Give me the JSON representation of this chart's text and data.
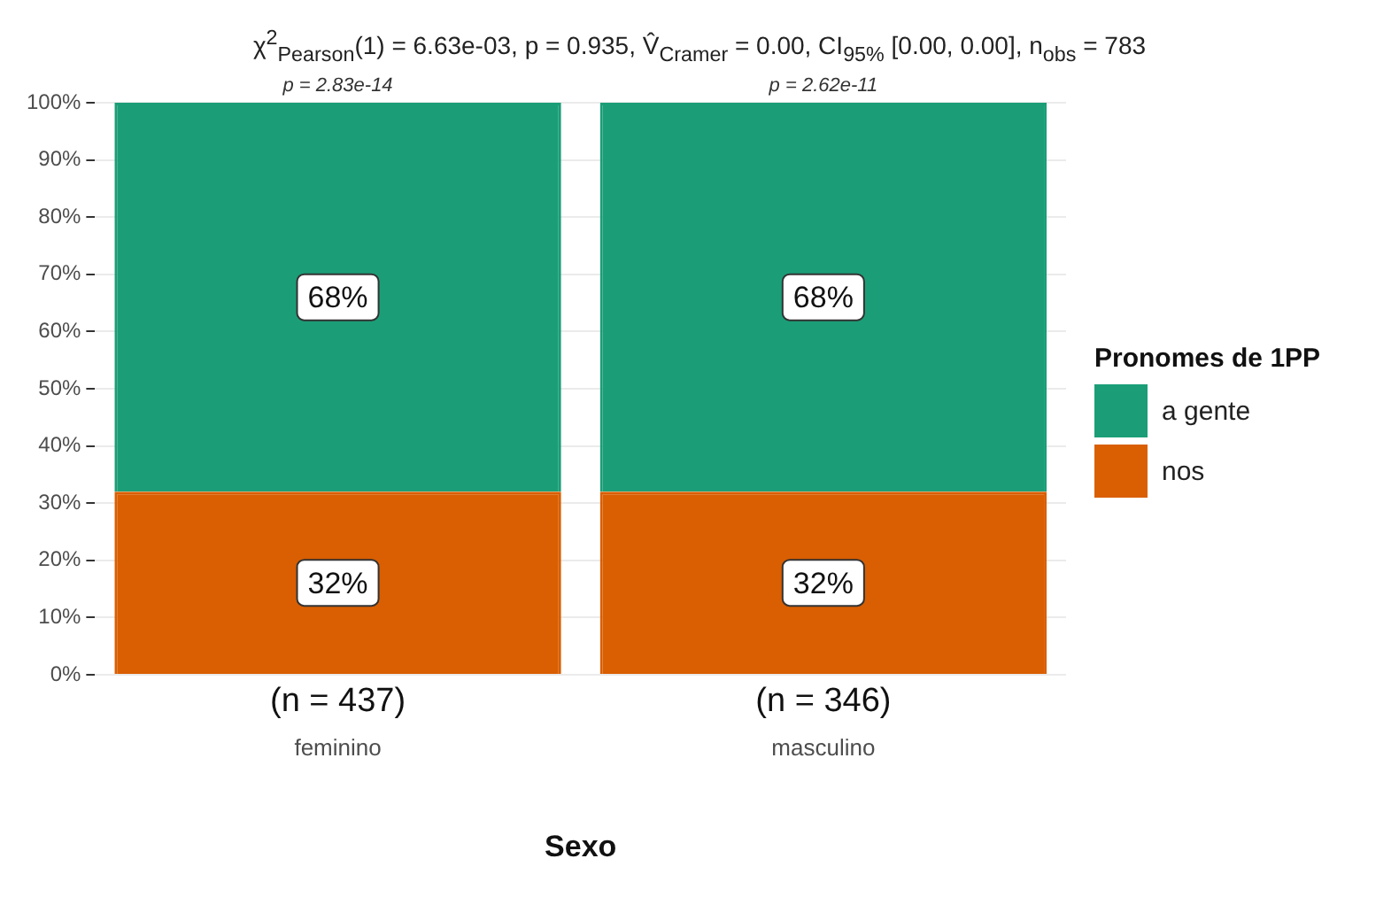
{
  "chart_data": {
    "type": "bar",
    "title": "χ$^{2}$$_{Pearson}$(1) = 6.63e-03, p = 0.935, V̂$_{Cramer}$ = 0.00, CI$_{95%}$ [0.00, 0.00], n$_{obs}$ = 783",
    "categories": [
      "feminino",
      "masculino"
    ],
    "series": [
      {
        "name": "nos",
        "color": "#d95f02",
        "values": [
          32,
          32
        ],
        "value_labels": [
          "32%",
          "32%"
        ]
      },
      {
        "name": "a gente",
        "color": "#1b9e77",
        "values": [
          68,
          68
        ],
        "value_labels": [
          "68%",
          "68%"
        ]
      }
    ],
    "stacked": true,
    "xlabel": "Sexo",
    "legend_title": "Pronomes de 1PP",
    "legend": "right",
    "grid": "y",
    "ylim": [
      0,
      100
    ],
    "yticks": [
      {
        "value": 0,
        "label": "0%"
      },
      {
        "value": 10,
        "label": "10%"
      },
      {
        "value": 20,
        "label": "20%"
      },
      {
        "value": 30,
        "label": "30%"
      },
      {
        "value": 40,
        "label": "40%"
      },
      {
        "value": 50,
        "label": "50%"
      },
      {
        "value": 60,
        "label": "60%"
      },
      {
        "value": 70,
        "label": "70%"
      },
      {
        "value": 80,
        "label": "80%"
      },
      {
        "value": 90,
        "label": "90%"
      },
      {
        "value": 100,
        "label": "100%"
      }
    ],
    "annotations": [
      {
        "text": "p = 2.83e-14",
        "x": "feminino",
        "y": 100
      },
      {
        "text": "p = 2.62e-11",
        "x": "masculino",
        "y": 100
      },
      "(n = 437)",
      "(n = 346)"
    ]
  }
}
